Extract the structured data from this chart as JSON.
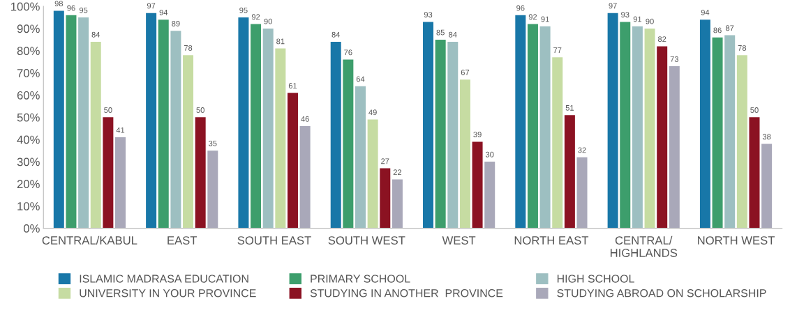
{
  "chart_data": {
    "type": "bar",
    "categories": [
      "CENTRAL/KABUL",
      "EAST",
      "SOUTH EAST",
      "SOUTH WEST",
      "WEST",
      "NORTH EAST",
      "CENTRAL/\nHIGHLANDS",
      "NORTH WEST"
    ],
    "series": [
      {
        "name": "ISLAMIC MADRASA EDUCATION",
        "color": "#1877a8",
        "values": [
          98,
          97,
          95,
          84,
          93,
          96,
          97,
          94
        ]
      },
      {
        "name": "PRIMARY SCHOOL",
        "color": "#3d9e6c",
        "values": [
          96,
          94,
          92,
          76,
          85,
          92,
          93,
          86
        ]
      },
      {
        "name": "HIGH SCHOOL",
        "color": "#9dbfc1",
        "values": [
          95,
          89,
          90,
          64,
          84,
          91,
          91,
          87
        ]
      },
      {
        "name": "UNIVERSITY IN YOUR PROVINCE",
        "color": "#c6dca2",
        "values": [
          84,
          78,
          81,
          49,
          67,
          77,
          90,
          78
        ]
      },
      {
        "name": "STUDYING IN ANOTHER  PROVINCE",
        "color": "#8b1222",
        "values": [
          50,
          50,
          61,
          27,
          39,
          51,
          82,
          50
        ]
      },
      {
        "name": "STUDYING ABROAD ON SCHOLARSHIP",
        "color": "#a9a8b9",
        "values": [
          41,
          35,
          46,
          22,
          30,
          32,
          73,
          38
        ]
      }
    ],
    "ylim": [
      0,
      100
    ],
    "yticks": [
      {
        "value": 0,
        "label": "0%"
      },
      {
        "value": 10,
        "label": "10%"
      },
      {
        "value": 20,
        "label": "20%"
      },
      {
        "value": 30,
        "label": "30%"
      },
      {
        "value": 40,
        "label": "40%"
      },
      {
        "value": 50,
        "label": "50%"
      },
      {
        "value": 60,
        "label": "60%"
      },
      {
        "value": 70,
        "label": "70%"
      },
      {
        "value": 80,
        "label": "80%"
      },
      {
        "value": 90,
        "label": "90%"
      },
      {
        "value": 100,
        "label": "100%"
      }
    ],
    "data_labels": true,
    "grid": false,
    "legend": "bottom"
  }
}
